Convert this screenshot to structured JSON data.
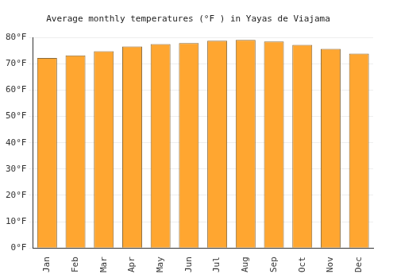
{
  "chart_data": {
    "type": "bar",
    "title": "Average monthly temperatures (°F ) in Yayas de Viajama",
    "categories": [
      "Jan",
      "Feb",
      "Mar",
      "Apr",
      "May",
      "Jun",
      "Jul",
      "Aug",
      "Sep",
      "Oct",
      "Nov",
      "Dec"
    ],
    "values": [
      72.2,
      73.2,
      74.8,
      76.6,
      77.5,
      77.9,
      78.8,
      79.1,
      78.5,
      77.2,
      75.7,
      73.9
    ],
    "color": "#ffa630",
    "ylim": [
      0,
      80
    ],
    "yticks": [
      {
        "value": 0,
        "label": "0°F"
      },
      {
        "value": 10,
        "label": "10°F"
      },
      {
        "value": 20,
        "label": "20°F"
      },
      {
        "value": 30,
        "label": "30°F"
      },
      {
        "value": 40,
        "label": "40°F"
      },
      {
        "value": 50,
        "label": "50°F"
      },
      {
        "value": 60,
        "label": "60°F"
      },
      {
        "value": 70,
        "label": "70°F"
      },
      {
        "value": 80,
        "label": "80°F"
      }
    ],
    "grid": true
  }
}
